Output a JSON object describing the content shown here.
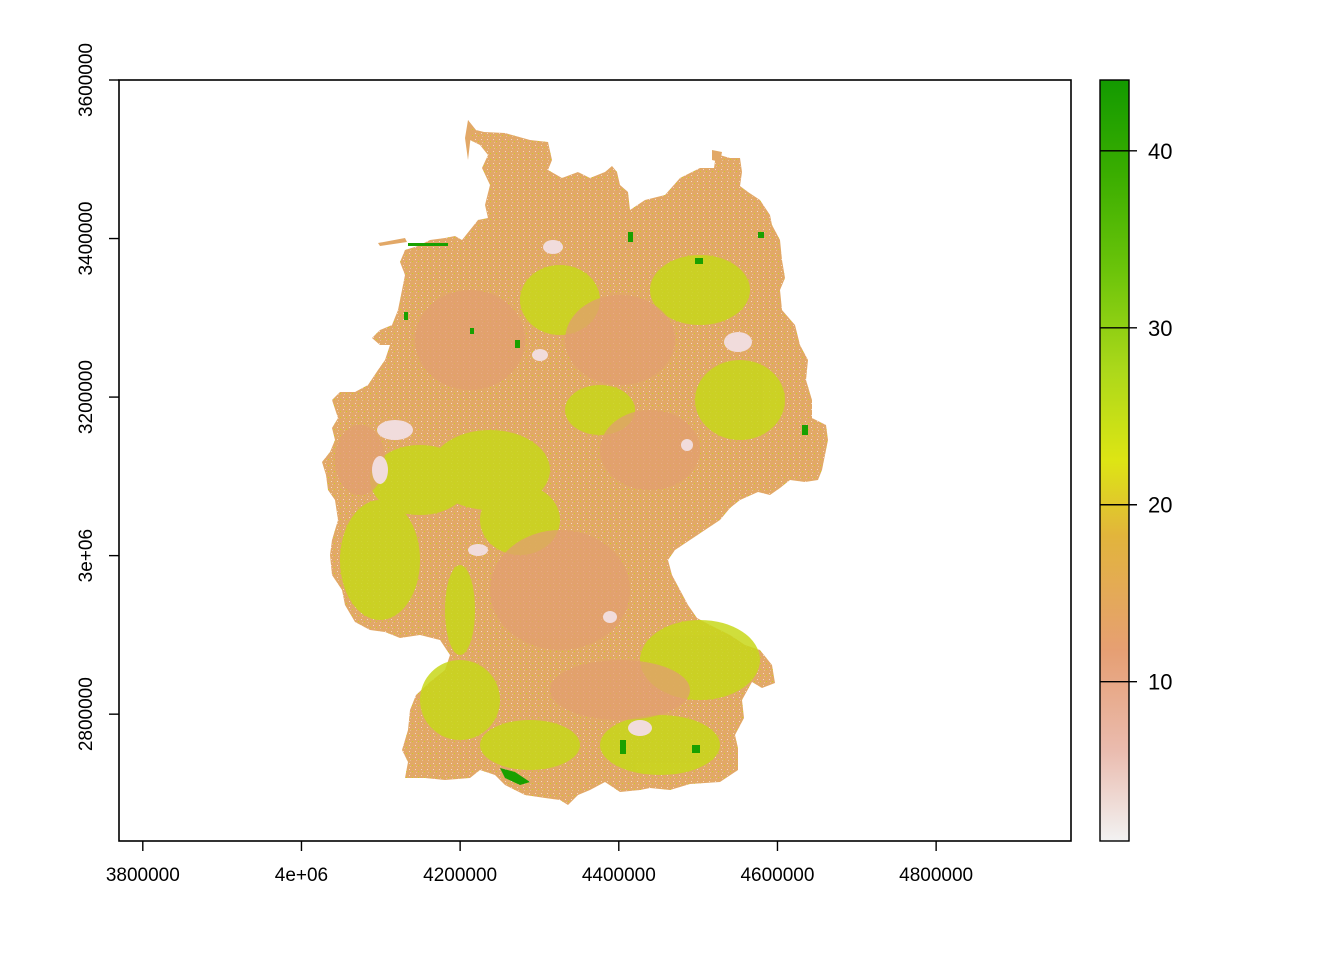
{
  "chart_data": {
    "type": "heatmap",
    "title": "",
    "xlabel": "",
    "ylabel": "",
    "xlim": [
      3770000,
      4970000
    ],
    "ylim": [
      2640000,
      3600000
    ],
    "x_ticks": [
      {
        "value": 3800000,
        "label": "3800000"
      },
      {
        "value": 4000000,
        "label": "4e+06"
      },
      {
        "value": 4200000,
        "label": "4200000"
      },
      {
        "value": 4400000,
        "label": "4400000"
      },
      {
        "value": 4600000,
        "label": "4600000"
      },
      {
        "value": 4800000,
        "label": "4800000"
      }
    ],
    "y_ticks": [
      {
        "value": 2800000,
        "label": "2800000"
      },
      {
        "value": 3000000,
        "label": "3e+06"
      },
      {
        "value": 3200000,
        "label": "3200000"
      },
      {
        "value": 3400000,
        "label": "3400000"
      },
      {
        "value": 3600000,
        "label": "3600000"
      }
    ],
    "legend": {
      "position": "right",
      "range": [
        1,
        44
      ],
      "ticks": [
        {
          "value": 10,
          "label": "10"
        },
        {
          "value": 20,
          "label": "20"
        },
        {
          "value": 30,
          "label": "30"
        },
        {
          "value": 40,
          "label": "40"
        }
      ],
      "colors": [
        "#f2f2f2",
        "#eabbae",
        "#e69f73",
        "#e2b43c",
        "#dde514",
        "#abd81a",
        "#6bc40a",
        "#39ad00",
        "#139a00"
      ]
    },
    "grid": false,
    "region": "Germany"
  }
}
